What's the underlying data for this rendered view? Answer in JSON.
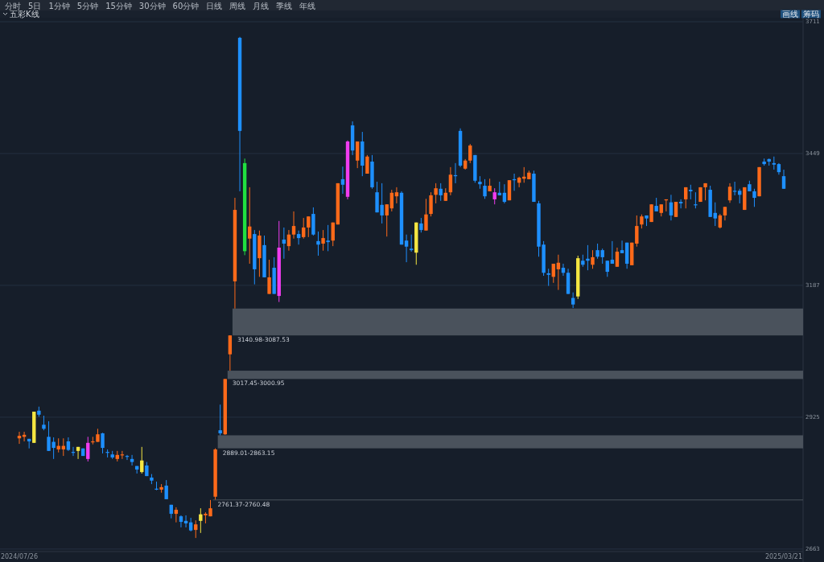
{
  "chart_data": {
    "type": "candlestick",
    "title": "五彩K线",
    "annotations": [
      "分时",
      "5日",
      "1分钟",
      "5分钟",
      "15分钟",
      "30分钟",
      "60分钟",
      "日线",
      "周线",
      "月线",
      "季线",
      "年线",
      "画线",
      "筹码"
    ],
    "categories": [
      "2024/07/26",
      null,
      null,
      null,
      null,
      null,
      null,
      null,
      null,
      null,
      null,
      null,
      null,
      null,
      null,
      null,
      null,
      null,
      null,
      null,
      null,
      null,
      null,
      null,
      null,
      null,
      null,
      null,
      null,
      null,
      null,
      null,
      null,
      null,
      null,
      null,
      null,
      null,
      null,
      null,
      null,
      null,
      null,
      null,
      null,
      null,
      null,
      null,
      null,
      null,
      null,
      null,
      null,
      null,
      null,
      null,
      null,
      null,
      null,
      null,
      null,
      null,
      null,
      null,
      null,
      null,
      null,
      null,
      null,
      null,
      null,
      null,
      null,
      null,
      null,
      null,
      null,
      null,
      null,
      null,
      null,
      null,
      null,
      null,
      null,
      null,
      null,
      null,
      null,
      null,
      null,
      null,
      null,
      null,
      null,
      null,
      null,
      null,
      null,
      null,
      null,
      null,
      null,
      null,
      null,
      null,
      null,
      null,
      null,
      null,
      null,
      null,
      null,
      null,
      null,
      null,
      null,
      null,
      null,
      null,
      null,
      null,
      null,
      null,
      null,
      null,
      null,
      null,
      null,
      null,
      null,
      null,
      null,
      null,
      null,
      null,
      null,
      null,
      null,
      null,
      null,
      null,
      null,
      null,
      null,
      null,
      null,
      null,
      null,
      null,
      null,
      null,
      null,
      null,
      null,
      null,
      "2025/03/21"
    ],
    "ohlc": [
      [
        2883,
        2896,
        2872,
        2888
      ],
      [
        2886,
        2896,
        2877,
        2890
      ],
      [
        2882,
        2882,
        2863,
        2877
      ],
      [
        2874,
        2936,
        2874,
        2936
      ],
      [
        2938,
        2946,
        2926,
        2930
      ],
      [
        2910,
        2928,
        2899,
        2902
      ],
      [
        2886,
        2917,
        2858,
        2858
      ],
      [
        2876,
        2885,
        2842,
        2864
      ],
      [
        2861,
        2883,
        2855,
        2868
      ],
      [
        2861,
        2883,
        2848,
        2868
      ],
      [
        2877,
        2885,
        2858,
        2860
      ],
      [
        2856,
        2866,
        2848,
        2855
      ],
      [
        2858,
        2866,
        2842,
        2866
      ],
      [
        2863,
        2863,
        2848,
        2848
      ],
      [
        2842,
        2886,
        2837,
        2874
      ],
      [
        2876,
        2886,
        2871,
        2877
      ],
      [
        2876,
        2902,
        2876,
        2891
      ],
      [
        2893,
        2894,
        2853,
        2864
      ],
      [
        2856,
        2861,
        2845,
        2855
      ],
      [
        2851,
        2858,
        2842,
        2845
      ],
      [
        2842,
        2858,
        2837,
        2850
      ],
      [
        2850,
        2858,
        2842,
        2851
      ],
      [
        2848,
        2850,
        2840,
        2847
      ],
      [
        2842,
        2850,
        2829,
        2836
      ],
      [
        2828,
        2828,
        2813,
        2821
      ],
      [
        2816,
        2866,
        2813,
        2839
      ],
      [
        2829,
        2836,
        2808,
        2808
      ],
      [
        2805,
        2812,
        2792,
        2799
      ],
      [
        2783,
        2797,
        2780,
        2781
      ],
      [
        2781,
        2792,
        2775,
        2786
      ],
      [
        2789,
        2800,
        2762,
        2762
      ],
      [
        2751,
        2751,
        2724,
        2733
      ],
      [
        2733,
        2746,
        2716,
        2741
      ],
      [
        2728,
        2730,
        2706,
        2717
      ],
      [
        2719,
        2730,
        2706,
        2714
      ],
      [
        2716,
        2725,
        2698,
        2700
      ],
      [
        2701,
        2720,
        2685,
        2712
      ],
      [
        2719,
        2744,
        2695,
        2732
      ],
      [
        2730,
        2736,
        2714,
        2733
      ],
      [
        2728,
        2760.48,
        2728,
        2744
      ],
      [
        2767,
        2863.15,
        2761.37,
        2861
      ],
      [
        2899,
        2950,
        2889.01,
        2893
      ],
      [
        2891,
        3000.95,
        2890,
        3000.95
      ],
      [
        3050,
        3087.53,
        3017.45,
        3087.53
      ],
      [
        3195,
        3361,
        3140.98,
        3337
      ],
      [
        3679,
        3681,
        3374,
        3494
      ],
      [
        3430,
        3439,
        3247,
        3255
      ],
      [
        3280,
        3382,
        3230,
        3304
      ],
      [
        3289,
        3297,
        3189,
        3219
      ],
      [
        3241,
        3296,
        3204,
        3286
      ],
      [
        3267,
        3286,
        3203,
        3203
      ],
      [
        3170,
        3238,
        3170,
        3203
      ],
      [
        3222,
        3243,
        3170,
        3170
      ],
      [
        3166,
        3315,
        3154,
        3262
      ],
      [
        3278,
        3302,
        3240,
        3270
      ],
      [
        3265,
        3297,
        3256,
        3288
      ],
      [
        3288,
        3334,
        3280,
        3305
      ],
      [
        3289,
        3296,
        3268,
        3281
      ],
      [
        3283,
        3321,
        3280,
        3302
      ],
      [
        3302,
        3324,
        3283,
        3324
      ],
      [
        3329,
        3342,
        3286,
        3288
      ],
      [
        3275,
        3294,
        3246,
        3268
      ],
      [
        3270,
        3297,
        3256,
        3281
      ],
      [
        3276,
        3307,
        3255,
        3273
      ],
      [
        3276,
        3312,
        3265,
        3312
      ],
      [
        3308,
        3390,
        3308,
        3390
      ],
      [
        3398,
        3423,
        3369,
        3387
      ],
      [
        3363,
        3475,
        3358,
        3473
      ],
      [
        3505,
        3513,
        3446,
        3455
      ],
      [
        3435,
        3473,
        3420,
        3473
      ],
      [
        3473,
        3492,
        3404,
        3425
      ],
      [
        3409,
        3446,
        3409,
        3443
      ],
      [
        3433,
        3446,
        3379,
        3382
      ],
      [
        3372,
        3393,
        3332,
        3332
      ],
      [
        3347,
        3390,
        3310,
        3326
      ],
      [
        3326,
        3348,
        3284,
        3348
      ],
      [
        3340,
        3377,
        3334,
        3371
      ],
      [
        3364,
        3382,
        3350,
        3372
      ],
      [
        3371,
        3374,
        3268,
        3268
      ],
      [
        3276,
        3288,
        3233,
        3264
      ],
      [
        3260,
        3288,
        3254,
        3257
      ],
      [
        3252,
        3312,
        3228,
        3312
      ],
      [
        3310,
        3321,
        3292,
        3297
      ],
      [
        3296,
        3359,
        3296,
        3328
      ],
      [
        3329,
        3372,
        3324,
        3366
      ],
      [
        3367,
        3390,
        3350,
        3380
      ],
      [
        3379,
        3390,
        3355,
        3366
      ],
      [
        3355,
        3380,
        3355,
        3371
      ],
      [
        3372,
        3422,
        3366,
        3407
      ],
      [
        3406,
        3430,
        3390,
        3404
      ],
      [
        3494,
        3499,
        3422,
        3425
      ],
      [
        3419,
        3438,
        3417,
        3435
      ],
      [
        3435,
        3468,
        3430,
        3465
      ],
      [
        3446,
        3446,
        3391,
        3395
      ],
      [
        3393,
        3404,
        3379,
        3388
      ],
      [
        3385,
        3398,
        3359,
        3364
      ],
      [
        3374,
        3399,
        3374,
        3385
      ],
      [
        3358,
        3380,
        3348,
        3372
      ],
      [
        3371,
        3393,
        3366,
        3366
      ],
      [
        3371,
        3388,
        3350,
        3353
      ],
      [
        3356,
        3396,
        3356,
        3396
      ],
      [
        3398,
        3409,
        3375,
        3396
      ],
      [
        3391,
        3403,
        3382,
        3401
      ],
      [
        3399,
        3422,
        3391,
        3403
      ],
      [
        3398,
        3415,
        3398,
        3411
      ],
      [
        3409,
        3415,
        3353,
        3353
      ],
      [
        3350,
        3355,
        3244,
        3264
      ],
      [
        3268,
        3275,
        3206,
        3212
      ],
      [
        3211,
        3220,
        3186,
        3208
      ],
      [
        3204,
        3230,
        3192,
        3230
      ],
      [
        3219,
        3248,
        3178,
        3232
      ],
      [
        3222,
        3230,
        3206,
        3212
      ],
      [
        3212,
        3220,
        3170,
        3170
      ],
      [
        3162,
        3173,
        3142,
        3149
      ],
      [
        3165,
        3246,
        3160,
        3241
      ],
      [
        3236,
        3248,
        3224,
        3228
      ],
      [
        3240,
        3267,
        3217,
        3236
      ],
      [
        3228,
        3257,
        3220,
        3243
      ],
      [
        3257,
        3270,
        3240,
        3244
      ],
      [
        3257,
        3260,
        3230,
        3243
      ],
      [
        3236,
        3236,
        3204,
        3214
      ],
      [
        3238,
        3275,
        3230,
        3230
      ],
      [
        3224,
        3262,
        3224,
        3254
      ],
      [
        3257,
        3276,
        3251,
        3251
      ],
      [
        3272,
        3272,
        3220,
        3230
      ],
      [
        3227,
        3272,
        3227,
        3272
      ],
      [
        3270,
        3326,
        3264,
        3305
      ],
      [
        3308,
        3328,
        3300,
        3324
      ],
      [
        3326,
        3326,
        3305,
        3320
      ],
      [
        3313,
        3348,
        3313,
        3348
      ],
      [
        3345,
        3361,
        3334,
        3334
      ],
      [
        3331,
        3348,
        3324,
        3348
      ],
      [
        3356,
        3358,
        3334,
        3358
      ],
      [
        3352,
        3367,
        3316,
        3326
      ],
      [
        3323,
        3353,
        3323,
        3353
      ],
      [
        3353,
        3358,
        3340,
        3350
      ],
      [
        3358,
        3382,
        3340,
        3382
      ],
      [
        3377,
        3387,
        3358,
        3374
      ],
      [
        3348,
        3372,
        3340,
        3347
      ],
      [
        3353,
        3382,
        3353,
        3382
      ],
      [
        3382,
        3390,
        3356,
        3390
      ],
      [
        3377,
        3385,
        3323,
        3323
      ],
      [
        3331,
        3352,
        3305,
        3320
      ],
      [
        3302,
        3329,
        3300,
        3326
      ],
      [
        3326,
        3343,
        3316,
        3343
      ],
      [
        3356,
        3390,
        3351,
        3383
      ],
      [
        3375,
        3393,
        3366,
        3374
      ],
      [
        3375,
        3379,
        3350,
        3367
      ],
      [
        3337,
        3382,
        3337,
        3382
      ],
      [
        3388,
        3395,
        3374,
        3374
      ],
      [
        3374,
        3379,
        3343,
        3361
      ],
      [
        3364,
        3422,
        3364,
        3422
      ],
      [
        3433,
        3439,
        3425,
        3428
      ],
      [
        3438,
        3439,
        3425,
        3433
      ],
      [
        3430,
        3443,
        3417,
        3427
      ],
      [
        3428,
        3430,
        3407,
        3412
      ],
      [
        3404,
        3417,
        3379,
        3379
      ]
    ],
    "colors": [
      "#ff6a1a",
      "#ff6a1a",
      "#1e90ff",
      "#f5e642",
      "#1e90ff",
      "#1e90ff",
      "#1e90ff",
      "#1e90ff",
      "#ff6a1a",
      "#ff6a1a",
      "#1e90ff",
      "#1e90ff",
      "#f5e642",
      "#1e90ff",
      "#f03cf0",
      "#ff6a1a",
      "#ff6a1a",
      "#1e90ff",
      "#1e90ff",
      "#1e90ff",
      "#ff6a1a",
      "#ff6a1a",
      "#1e90ff",
      "#1e90ff",
      "#1e90ff",
      "#f5e642",
      "#1e90ff",
      "#1e90ff",
      "#1e90ff",
      "#ff6a1a",
      "#1e90ff",
      "#1e90ff",
      "#ff6a1a",
      "#1e90ff",
      "#1e90ff",
      "#1e90ff",
      "#ff6a1a",
      "#f5e642",
      "#ff6a1a",
      "#ff6a1a",
      "#ff6a1a",
      "#1e90ff",
      "#ff6a1a",
      "#ff6a1a",
      "#ff6a1a",
      "#1e90ff",
      "#20e040",
      "#ff6a1a",
      "#1e90ff",
      "#ff6a1a",
      "#1e90ff",
      "#ff6a1a",
      "#1e90ff",
      "#f03cf0",
      "#1e90ff",
      "#ff6a1a",
      "#ff6a1a",
      "#1e90ff",
      "#ff6a1a",
      "#ff6a1a",
      "#1e90ff",
      "#1e90ff",
      "#ff6a1a",
      "#1e90ff",
      "#ff6a1a",
      "#ff6a1a",
      "#1e90ff",
      "#f03cf0",
      "#1e90ff",
      "#ff6a1a",
      "#1e90ff",
      "#ff6a1a",
      "#1e90ff",
      "#1e90ff",
      "#1e90ff",
      "#ff6a1a",
      "#ff6a1a",
      "#ff6a1a",
      "#1e90ff",
      "#1e90ff",
      "#1e90ff",
      "#f5e642",
      "#1e90ff",
      "#ff6a1a",
      "#ff6a1a",
      "#ff6a1a",
      "#1e90ff",
      "#ff6a1a",
      "#ff6a1a",
      "#1e90ff",
      "#1e90ff",
      "#ff6a1a",
      "#ff6a1a",
      "#1e90ff",
      "#1e90ff",
      "#1e90ff",
      "#ff6a1a",
      "#f03cf0",
      "#1e90ff",
      "#1e90ff",
      "#ff6a1a",
      "#1e90ff",
      "#ff6a1a",
      "#ff6a1a",
      "#ff6a1a",
      "#1e90ff",
      "#1e90ff",
      "#1e90ff",
      "#1e90ff",
      "#ff6a1a",
      "#ff6a1a",
      "#1e90ff",
      "#1e90ff",
      "#1e90ff",
      "#f5e642",
      "#1e90ff",
      "#1e90ff",
      "#ff6a1a",
      "#1e90ff",
      "#1e90ff",
      "#1e90ff",
      "#1e90ff",
      "#ff6a1a",
      "#1e90ff",
      "#1e90ff",
      "#ff6a1a",
      "#ff6a1a",
      "#ff6a1a",
      "#1e90ff",
      "#ff6a1a",
      "#1e90ff",
      "#ff6a1a",
      "#ff6a1a",
      "#1e90ff",
      "#ff6a1a",
      "#1e90ff",
      "#ff6a1a",
      "#1e90ff",
      "#1e90ff",
      "#ff6a1a",
      "#ff6a1a",
      "#1e90ff",
      "#1e90ff",
      "#ff6a1a",
      "#ff6a1a",
      "#ff6a1a",
      "#1e90ff",
      "#1e90ff",
      "#ff6a1a",
      "#1e90ff",
      "#1e90ff",
      "#ff6a1a",
      "#1e90ff",
      "#1e90ff",
      "#1e90ff",
      "#1e90ff",
      "#1e90ff"
    ],
    "ylim": [
      2658,
      3719
    ],
    "yticks": [
      2663,
      2925,
      3187,
      3449,
      3711
    ],
    "grid": "y",
    "bands": [
      {
        "axis": "y",
        "from": 3087.53,
        "to": 3140.98,
        "label": "3140.98-3087.53",
        "color": "#4a525c"
      },
      {
        "axis": "y",
        "from": 3000.95,
        "to": 3017.45,
        "label": "3017.45-3000.95",
        "color": "#4a525c"
      },
      {
        "axis": "y",
        "from": 2863.15,
        "to": 2889.01,
        "label": "2889.01-2863.15",
        "color": "#4a525c"
      },
      {
        "axis": "y",
        "from": 2760.48,
        "to": 2761.37,
        "label": "2761.37-2760.48",
        "color": "#4a525c"
      }
    ]
  }
}
